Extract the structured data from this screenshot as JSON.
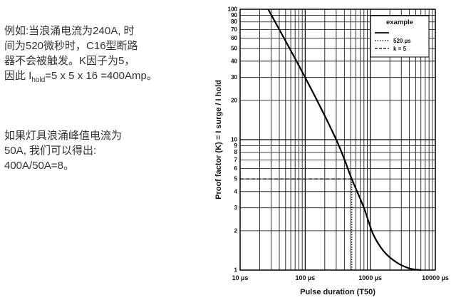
{
  "text": {
    "block1": [
      "例如:当浪涌电流为240A, 时",
      "间为520微秒时，C16型断路",
      "器不会被触发。K因子为5，"
    ],
    "block1_last": {
      "prefix": "因此 I",
      "sub": "hold",
      "suffix": "=5 x 5 x 16 =400Amp。"
    },
    "block2": [
      "如果灯具浪涌峰值电流为",
      "50A, 我们可以得出:",
      "400A/50A=8。"
    ]
  },
  "chart_data": {
    "type": "line",
    "xlabel": "Pulse duration (T50)",
    "ylabel": "Proof factor (K) = I surge / I hold",
    "x_scale": "log",
    "y_scale": "log",
    "xlim": [
      10,
      10000
    ],
    "ylim": [
      1,
      100
    ],
    "grid": true,
    "x_tick_labels": [
      {
        "value": 10,
        "label": "10 µs"
      },
      {
        "value": 100,
        "label": "100 µs"
      },
      {
        "value": 1000,
        "label": "1000 µs"
      },
      {
        "value": 10000,
        "label": "10000 µs"
      }
    ],
    "y_tick_labels": [
      {
        "value": 1,
        "label": "1"
      },
      {
        "value": 2,
        "label": "2"
      },
      {
        "value": 3,
        "label": "3"
      },
      {
        "value": 4,
        "label": "4"
      },
      {
        "value": 5,
        "label": "5"
      },
      {
        "value": 6,
        "label": "6"
      },
      {
        "value": 7,
        "label": "7"
      },
      {
        "value": 8,
        "label": "8"
      },
      {
        "value": 9,
        "label": "9"
      },
      {
        "value": 10,
        "label": "10"
      },
      {
        "value": 20,
        "label": "20"
      },
      {
        "value": 30,
        "label": "30"
      },
      {
        "value": 40,
        "label": "40"
      },
      {
        "value": 50,
        "label": "50"
      },
      {
        "value": 60,
        "label": "60"
      },
      {
        "value": 70,
        "label": "70"
      },
      {
        "value": 80,
        "label": "80"
      },
      {
        "value": 90,
        "label": "90"
      },
      {
        "value": 100,
        "label": "100"
      }
    ],
    "legend": {
      "placement": "top-right",
      "title": "example",
      "entries": [
        {
          "label": "",
          "style": "solid"
        },
        {
          "label": "520 µs",
          "style": "dotted"
        },
        {
          "label": "k = 5",
          "style": "dashed"
        }
      ]
    },
    "series": [
      {
        "style": "solid",
        "x": [
          27,
          100,
          300,
          520,
          800,
          1100,
          1600,
          2500,
          4000,
          6000
        ],
        "y": [
          100,
          30,
          10,
          5,
          3,
          1.9,
          1.4,
          1.15,
          1.03,
          1.0
        ]
      }
    ],
    "annotations": {
      "vertical_dotted": {
        "x": 520,
        "y_from": 1,
        "y_to": 5
      },
      "horizontal_dashed": {
        "y": 5,
        "x_from": 10,
        "x_to": 520
      }
    },
    "colors": {
      "line": "#000000",
      "grid": "#000000",
      "text": "#333333"
    }
  }
}
